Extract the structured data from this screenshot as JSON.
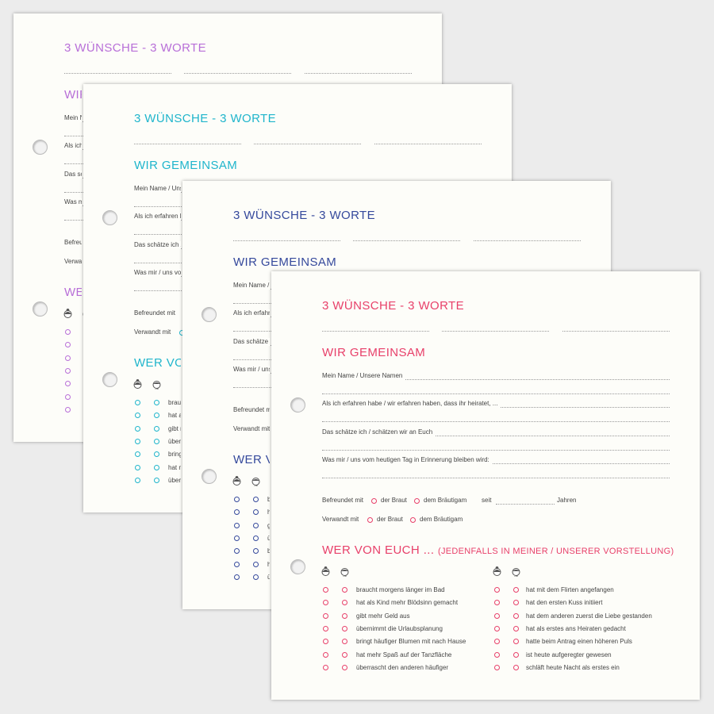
{
  "pages": [
    {
      "accent": "#b86fd8"
    },
    {
      "accent": "#1fb5cc"
    },
    {
      "accent": "#35499c"
    },
    {
      "accent": "#e8406a"
    }
  ],
  "content": {
    "title": "3 WÜNSCHE - 3 WORTE",
    "section1": "WIR GEMEINSAM",
    "fields": [
      "Mein Name / Unsere Namen",
      "Als ich erfahren habe / wir erfahren haben, dass ihr heiratet, ...",
      "Das schätze ich / schätzen wir an Euch",
      "Was mir / uns vom heutigen Tag in Erinnerung bleiben wird:"
    ],
    "befreundet": "Befreundet mit",
    "verwandt": "Verwandt mit",
    "braut": "der Braut",
    "braeutigam": "dem Bräutigam",
    "seit": "seit",
    "jahren": "Jahren",
    "section2": "WER VON EUCH ...",
    "section2_sub": "(JEDENFALLS IN MEINER / UNSERER VORSTELLUNG)",
    "left": [
      "braucht morgens länger im Bad",
      "hat als Kind mehr Blödsinn gemacht",
      "gibt mehr Geld aus",
      "übernimmt die Urlaubsplanung",
      "bringt häufiger Blumen mit nach Hause",
      "hat mehr Spaß auf der Tanzfläche",
      "überrascht den anderen häufiger"
    ],
    "right": [
      "hat mit dem Flirten angefangen",
      "hat den ersten Kuss initiiert",
      "hat dem anderen zuerst die Liebe gestanden",
      "hat als erstes ans Heiraten gedacht",
      "hatte beim Antrag einen höheren Puls",
      "ist heute aufgeregter gewesen",
      "schläft heute Nacht als erstes ein"
    ],
    "icons": [
      "bride-icon",
      "groom-icon"
    ]
  }
}
